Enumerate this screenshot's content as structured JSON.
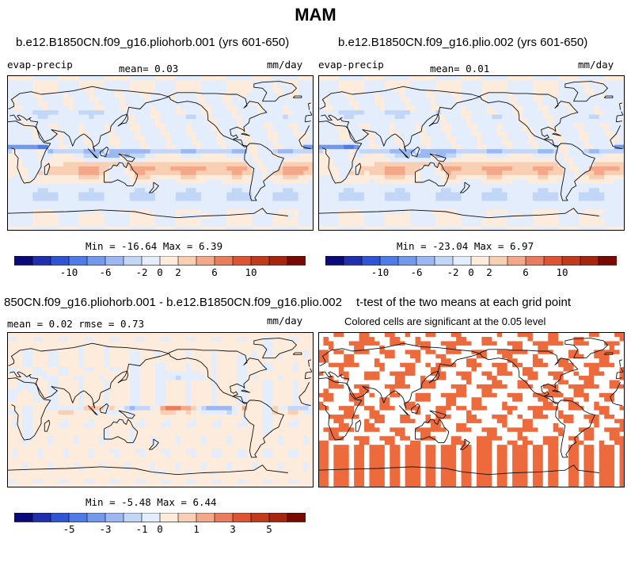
{
  "figure": {
    "title": "MAM"
  },
  "panels": [
    {
      "id": "p1",
      "title": "b.e12.B1850CN.f09_g16.pliohorb.001 (yrs 601-650)",
      "left_label": "evap-precip",
      "center_label": "mean=    0.03",
      "right_label": "mm/day",
      "stats": "Min = -16.64 Max =    6.39",
      "field": "base1"
    },
    {
      "id": "p2",
      "title": "b.e12.B1850CN.f09_g16.plio.002 (yrs 601-650)",
      "left_label": "evap-precip",
      "center_label": "mean=    0.01",
      "right_label": "mm/day",
      "stats": "Min = -23.04 Max =    6.97",
      "field": "base2"
    },
    {
      "id": "p3",
      "title": "850CN.f09_g16.pliohorb.001 - b.e12.B1850CN.f09_g16.plio.002",
      "left_label": "mean =    0.02    rmse =    0.73",
      "right_label": "mm/day",
      "stats": "Min =  -5.48 Max =    6.44",
      "field": "diff"
    },
    {
      "id": "p4",
      "title": "t-test of the two means at each grid point",
      "subtitle": "Colored cells are significant at the 0.05 level",
      "field": "ttest"
    }
  ],
  "colorbars": [
    {
      "id": "cb-top",
      "colors": [
        "#0a0a7a",
        "#1f2fb0",
        "#2f55d6",
        "#4f7be8",
        "#7399ef",
        "#9bb8f3",
        "#c2d6f7",
        "#e3edfb",
        "#fdebdc",
        "#f9cfb3",
        "#f3a889",
        "#ea7c5e",
        "#de5332",
        "#c23a1b",
        "#a8240f",
        "#7a0a00"
      ],
      "labels": [
        {
          "text": "-10",
          "index": 2
        },
        {
          "text": "-6",
          "index": 4
        },
        {
          "text": "-2",
          "index": 6
        },
        {
          "text": "0",
          "index": 7
        },
        {
          "text": "2",
          "index": 8
        },
        {
          "text": "6",
          "index": 10
        },
        {
          "text": "10",
          "index": 12
        }
      ]
    },
    {
      "id": "cb-bottom",
      "colors": [
        "#0a0a7a",
        "#1f2fb0",
        "#2f55d6",
        "#4f7be8",
        "#7399ef",
        "#9bb8f3",
        "#c2d6f7",
        "#e3edfb",
        "#fdebdc",
        "#f9cfb3",
        "#f3a889",
        "#ea7c5e",
        "#de5332",
        "#c23a1b",
        "#a8240f",
        "#7a0a00"
      ],
      "labels": [
        {
          "text": "-5",
          "index": 2
        },
        {
          "text": "-3",
          "index": 4
        },
        {
          "text": "-1",
          "index": 6
        },
        {
          "text": "0",
          "index": 7
        },
        {
          "text": "1",
          "index": 9
        },
        {
          "text": "3",
          "index": 11
        },
        {
          "text": "5",
          "index": 13
        }
      ]
    }
  ],
  "map_colors": {
    "sig": "#ec6a3c",
    "coast": "#111111"
  }
}
